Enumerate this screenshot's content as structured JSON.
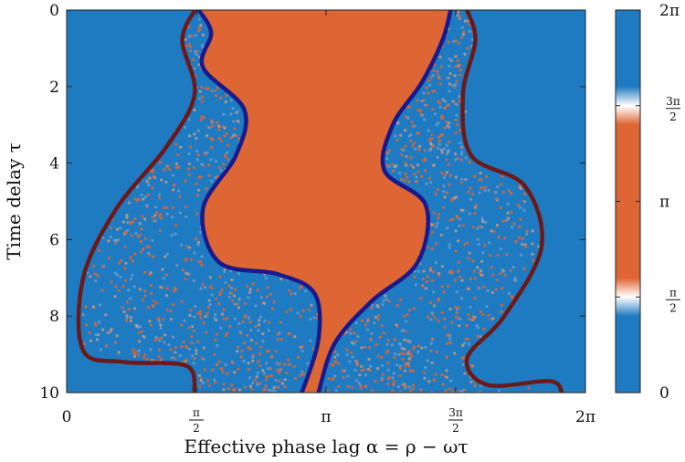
{
  "chart_data": {
    "type": "heatmap",
    "title": "",
    "xlabel": "Effective phase lag α = ρ − ωτ",
    "ylabel": "Time delay τ",
    "xlim": [
      0,
      6.2832
    ],
    "ylim": [
      10,
      0
    ],
    "x_ticks": [
      {
        "value": 0,
        "label": "0",
        "num": "",
        "den": ""
      },
      {
        "value": 1.5708,
        "label": "",
        "num": "π",
        "den": "2"
      },
      {
        "value": 3.1416,
        "label": "π",
        "num": "",
        "den": ""
      },
      {
        "value": 4.7124,
        "label": "",
        "num": "3π",
        "den": "2"
      },
      {
        "value": 6.2832,
        "label": "2π",
        "num": "",
        "den": ""
      }
    ],
    "y_ticks": [
      {
        "value": 0,
        "label": "0"
      },
      {
        "value": 2,
        "label": "2"
      },
      {
        "value": 4,
        "label": "4"
      },
      {
        "value": 6,
        "label": "6"
      },
      {
        "value": 8,
        "label": "8"
      },
      {
        "value": 10,
        "label": "10"
      }
    ],
    "colorbar": {
      "range": [
        0,
        6.2832
      ],
      "colors": {
        "low": "#1f7bc1",
        "mid": "#de6534",
        "white": "#ffffff"
      },
      "ticks": [
        {
          "value": 0,
          "label": "0",
          "num": "",
          "den": ""
        },
        {
          "value": 1.5708,
          "label": "",
          "num": "π",
          "den": "2"
        },
        {
          "value": 3.1416,
          "label": "π",
          "num": "",
          "den": ""
        },
        {
          "value": 4.7124,
          "label": "",
          "num": "3π",
          "den": "2"
        },
        {
          "value": 6.2832,
          "label": "2π",
          "num": "",
          "den": ""
        }
      ]
    },
    "regions": {
      "background_color": "#1f7bc1",
      "core_color": "#de6534",
      "scatter_colors": [
        "#de6534",
        "#6a9acb",
        "#c89a83"
      ]
    },
    "series": [
      {
        "color": "#1a1a8a",
        "points": [
          [
            1.6,
            0
          ],
          [
            1.75,
            0.6
          ],
          [
            1.65,
            1.5
          ],
          [
            2.15,
            2.6
          ],
          [
            2.05,
            3.8
          ],
          [
            1.65,
            5.2
          ],
          [
            1.85,
            6.6
          ],
          [
            2.55,
            6.9
          ],
          [
            3.0,
            7.4
          ],
          [
            3.05,
            8.6
          ],
          [
            2.85,
            10
          ]
        ]
      },
      {
        "color": "#1a1a8a",
        "points": [
          [
            4.65,
            0
          ],
          [
            4.55,
            0.8
          ],
          [
            4.3,
            1.9
          ],
          [
            3.95,
            3.0
          ],
          [
            3.85,
            4.2
          ],
          [
            4.35,
            5.1
          ],
          [
            4.25,
            6.6
          ],
          [
            3.7,
            7.6
          ],
          [
            3.25,
            8.7
          ],
          [
            3.05,
            10
          ]
        ]
      },
      {
        "color": "#6b1a1a",
        "points": [
          [
            1.55,
            0
          ],
          [
            1.4,
            0.8
          ],
          [
            1.55,
            2.2
          ],
          [
            1.2,
            3.6
          ],
          [
            0.6,
            5.2
          ],
          [
            0.2,
            7.0
          ],
          [
            0.2,
            8.9
          ],
          [
            0.7,
            9.2
          ],
          [
            1.45,
            9.3
          ],
          [
            1.55,
            10
          ]
        ]
      },
      {
        "color": "#6b1a1a",
        "points": [
          [
            4.85,
            0
          ],
          [
            4.95,
            0.8
          ],
          [
            4.8,
            2.2
          ],
          [
            4.9,
            3.8
          ],
          [
            5.55,
            4.6
          ],
          [
            5.75,
            6.2
          ],
          [
            5.3,
            8.0
          ],
          [
            4.85,
            9.1
          ],
          [
            5.1,
            9.8
          ],
          [
            5.85,
            9.7
          ],
          [
            6.0,
            10
          ]
        ]
      }
    ]
  }
}
